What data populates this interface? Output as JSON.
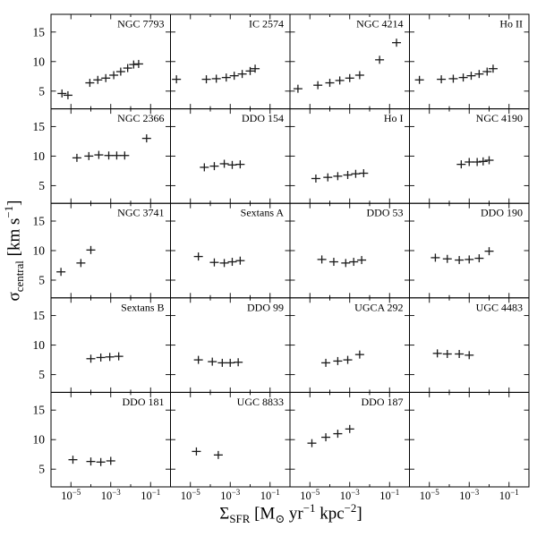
{
  "chart_data": {
    "type": "scatter",
    "title": "",
    "xlabel": "Σ_{SFR} [M_{⊙} yr^{−1} kpc^{−2}]",
    "ylabel": "σ_{central} [km s^{−1}]",
    "xscale": "log",
    "grid": {
      "rows": 5,
      "cols": 4
    },
    "xlim_log10": [
      -6,
      0
    ],
    "ylim": [
      2,
      18
    ],
    "yticks": [
      5,
      10,
      15
    ],
    "xticks_log10": [
      -5,
      -3,
      -1
    ],
    "xtick_labels": [
      "10^{−5}",
      "10^{−3}",
      "10^{−1}"
    ],
    "gridlines": false,
    "legend": "none",
    "marker": "plus-errorbar",
    "colors": {
      "axis": "#000000",
      "marker": "#1a1a1a",
      "background": "#ffffff"
    },
    "panels": [
      {
        "name": "NGC 7793",
        "log10_x": [
          -5.45,
          -5.15,
          -4.05,
          -3.65,
          -3.25,
          -2.85,
          -2.5,
          -2.15,
          -1.85,
          -1.6
        ],
        "y": [
          4.6,
          4.3,
          6.4,
          6.9,
          7.2,
          7.7,
          8.3,
          8.9,
          9.5,
          9.6
        ]
      },
      {
        "name": "IC 2574",
        "log10_x": [
          -5.7,
          -4.2,
          -3.7,
          -3.2,
          -2.8,
          -2.4,
          -2.0,
          -1.75
        ],
        "y": [
          7.0,
          7.0,
          7.1,
          7.3,
          7.6,
          7.9,
          8.4,
          8.8
        ]
      },
      {
        "name": "NGC 4214",
        "log10_x": [
          -5.6,
          -4.6,
          -4.0,
          -3.5,
          -3.0,
          -2.5,
          -1.5,
          -0.65
        ],
        "y": [
          5.4,
          6.0,
          6.4,
          6.8,
          7.2,
          7.7,
          10.3,
          13.2
        ]
      },
      {
        "name": "Ho II",
        "log10_x": [
          -5.5,
          -4.4,
          -3.8,
          -3.3,
          -2.9,
          -2.5,
          -2.1,
          -1.8
        ],
        "y": [
          6.9,
          7.0,
          7.1,
          7.3,
          7.6,
          7.9,
          8.3,
          8.8
        ]
      },
      {
        "name": "NGC 2366",
        "log10_x": [
          -4.7,
          -4.1,
          -3.6,
          -3.1,
          -2.7,
          -2.3,
          -1.2
        ],
        "y": [
          9.7,
          10.0,
          10.2,
          10.1,
          10.1,
          10.1,
          13.0
        ]
      },
      {
        "name": "DDO 154",
        "log10_x": [
          -4.3,
          -3.8,
          -3.3,
          -2.9,
          -2.5
        ],
        "y": [
          8.1,
          8.3,
          8.7,
          8.5,
          8.6
        ]
      },
      {
        "name": "Ho I",
        "log10_x": [
          -4.7,
          -4.1,
          -3.6,
          -3.1,
          -2.7,
          -2.3
        ],
        "y": [
          6.2,
          6.4,
          6.6,
          6.8,
          7.0,
          7.1
        ]
      },
      {
        "name": "NGC 4190",
        "log10_x": [
          -3.4,
          -3.0,
          -2.6,
          -2.3,
          -2.0
        ],
        "y": [
          8.6,
          9.0,
          9.0,
          9.1,
          9.3
        ]
      },
      {
        "name": "NGC 3741",
        "log10_x": [
          -5.5,
          -4.5,
          -4.0
        ],
        "y": [
          6.4,
          7.9,
          10.1
        ]
      },
      {
        "name": "Sextans A",
        "log10_x": [
          -4.6,
          -3.8,
          -3.3,
          -2.9,
          -2.5
        ],
        "y": [
          9.0,
          8.0,
          7.9,
          8.1,
          8.3
        ]
      },
      {
        "name": "DDO 53",
        "log10_x": [
          -4.4,
          -3.8,
          -3.2,
          -2.8,
          -2.4
        ],
        "y": [
          8.5,
          8.1,
          7.9,
          8.1,
          8.4
        ]
      },
      {
        "name": "DDO 190",
        "log10_x": [
          -4.7,
          -4.1,
          -3.5,
          -3.0,
          -2.5,
          -2.0
        ],
        "y": [
          8.8,
          8.6,
          8.4,
          8.5,
          8.7,
          9.9
        ]
      },
      {
        "name": "Sextans B",
        "log10_x": [
          -4.0,
          -3.5,
          -3.05,
          -2.6
        ],
        "y": [
          7.7,
          7.9,
          8.0,
          8.1
        ]
      },
      {
        "name": "DDO 99",
        "log10_x": [
          -4.6,
          -3.9,
          -3.4,
          -3.0,
          -2.6
        ],
        "y": [
          7.5,
          7.2,
          7.0,
          7.0,
          7.1
        ]
      },
      {
        "name": "UGCA 292",
        "log10_x": [
          -4.2,
          -3.6,
          -3.1,
          -2.5
        ],
        "y": [
          7.0,
          7.3,
          7.5,
          8.4
        ]
      },
      {
        "name": "UGC 4483",
        "log10_x": [
          -4.6,
          -4.1,
          -3.5,
          -3.0
        ],
        "y": [
          8.6,
          8.5,
          8.5,
          8.3
        ]
      },
      {
        "name": "DDO 181",
        "log10_x": [
          -4.9,
          -4.0,
          -3.5,
          -3.0
        ],
        "y": [
          6.6,
          6.3,
          6.2,
          6.4
        ]
      },
      {
        "name": "UGC 8833",
        "log10_x": [
          -4.7,
          -3.6
        ],
        "y": [
          8.0,
          7.4
        ]
      },
      {
        "name": "DDO 187",
        "log10_x": [
          -4.9,
          -4.2,
          -3.6,
          -3.0
        ],
        "y": [
          9.4,
          10.4,
          11.0,
          11.8
        ]
      },
      {
        "name": "",
        "log10_x": [],
        "y": []
      }
    ]
  }
}
